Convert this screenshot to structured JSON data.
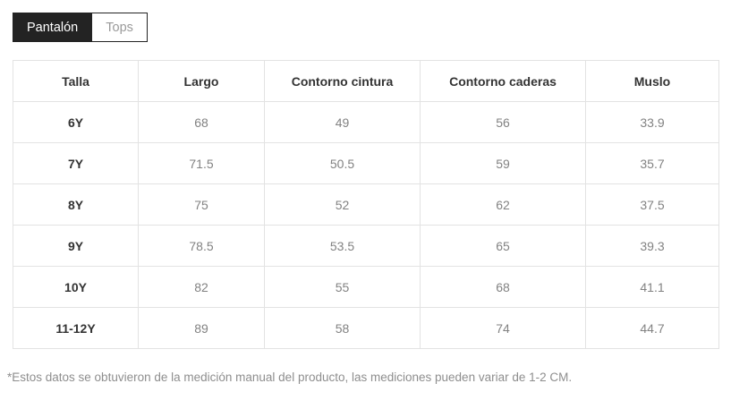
{
  "tabs": {
    "pantalon": {
      "label": "Pantalón",
      "active": true
    },
    "tops": {
      "label": "Tops",
      "active": false
    }
  },
  "table": {
    "headers": [
      "Talla",
      "Largo",
      "Contorno cintura",
      "Contorno caderas",
      "Muslo"
    ],
    "rows": [
      {
        "size": "6Y",
        "values": [
          "68",
          "49",
          "56",
          "33.9"
        ]
      },
      {
        "size": "7Y",
        "values": [
          "71.5",
          "50.5",
          "59",
          "35.7"
        ]
      },
      {
        "size": "8Y",
        "values": [
          "75",
          "52",
          "62",
          "37.5"
        ]
      },
      {
        "size": "9Y",
        "values": [
          "78.5",
          "53.5",
          "65",
          "39.3"
        ]
      },
      {
        "size": "10Y",
        "values": [
          "82",
          "55",
          "68",
          "41.1"
        ]
      },
      {
        "size": "11-12Y",
        "values": [
          "89",
          "58",
          "74",
          "44.7"
        ]
      }
    ]
  },
  "footnote": "*Estos datos se obtuvieron de la medición manual del producto, las mediciones pueden variar de 1-2 CM.",
  "colors": {
    "tab_active_bg": "#232323",
    "tab_active_text": "#ffffff",
    "tab_inactive_text": "#9a9a9a",
    "table_border": "#e3e3e3",
    "header_text": "#333333",
    "value_text": "#828282",
    "footnote_text": "#8e8e8e"
  }
}
